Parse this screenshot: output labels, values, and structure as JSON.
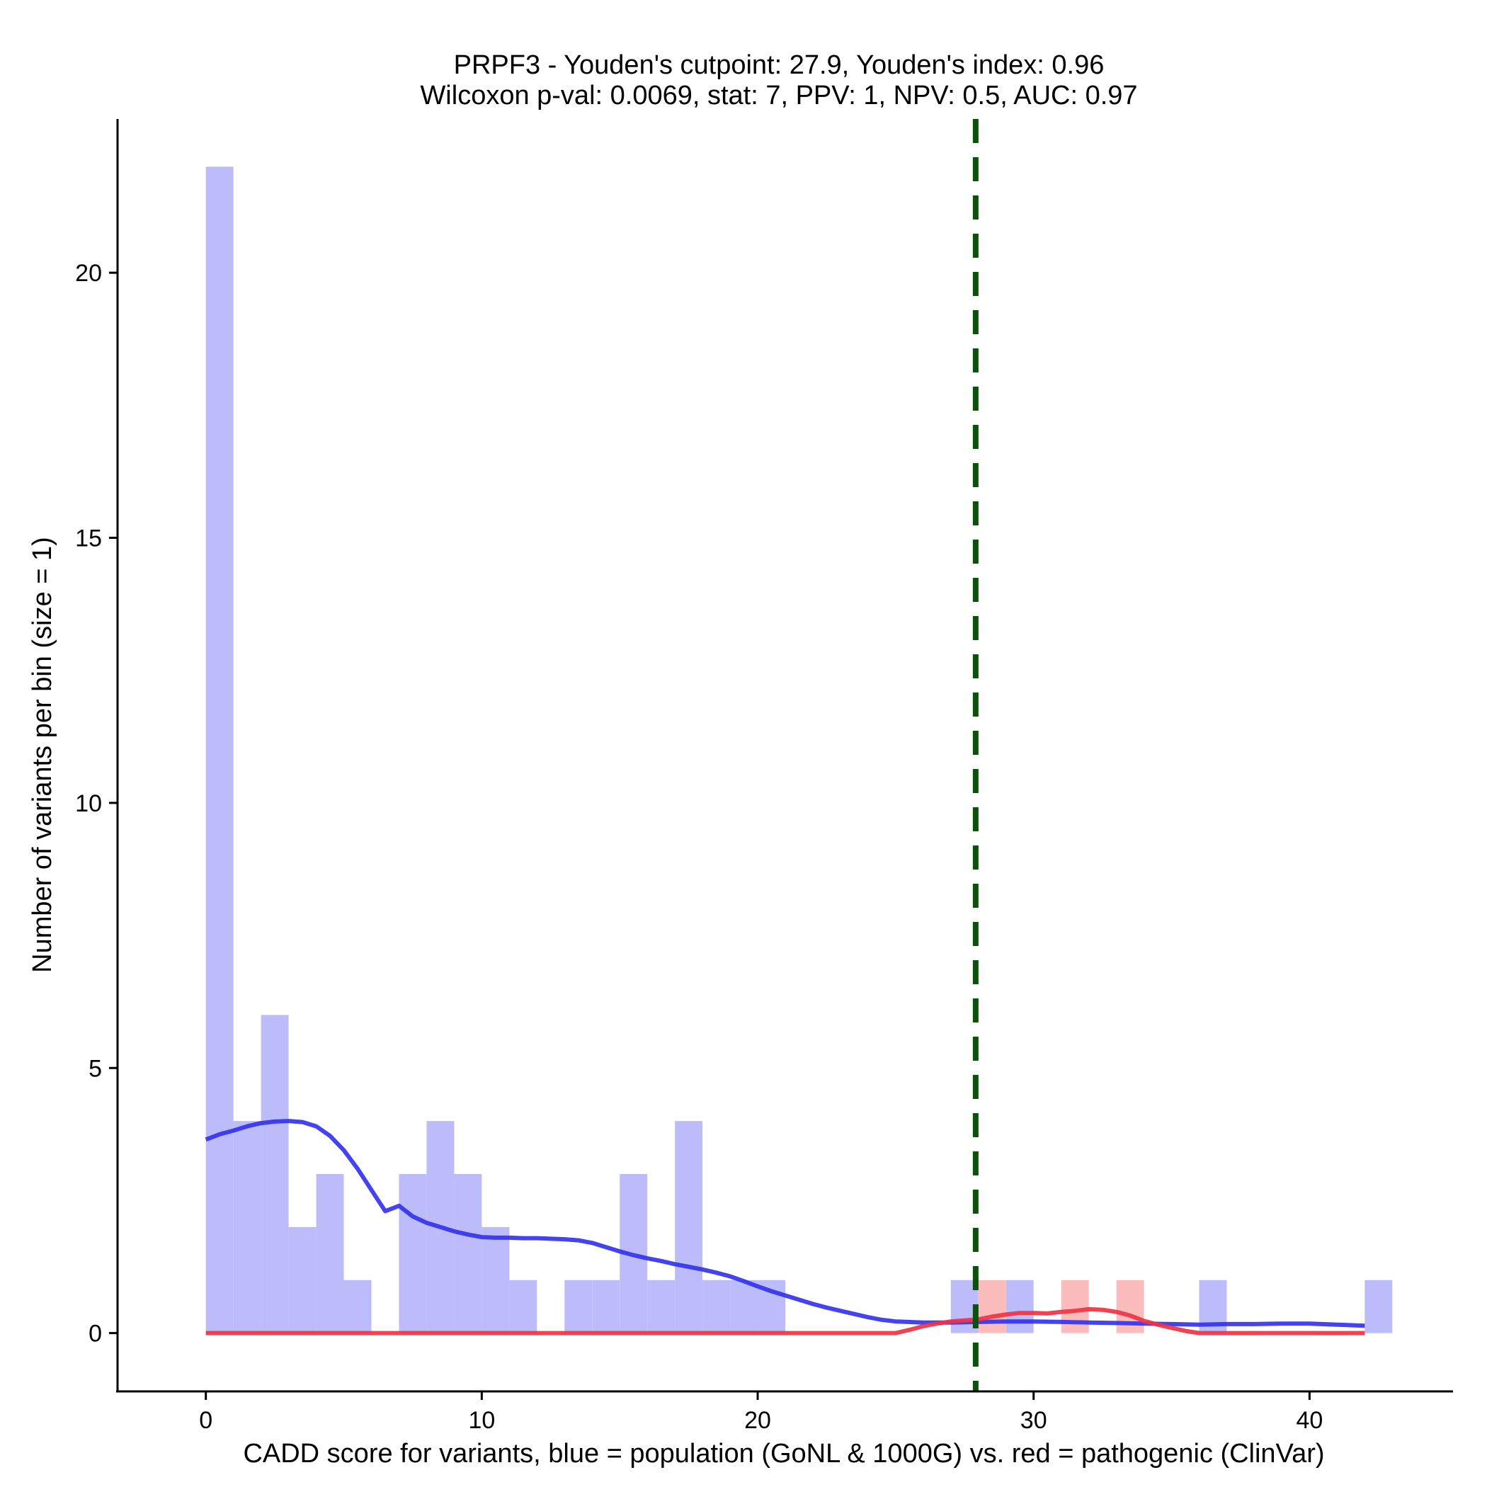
{
  "chart_data": {
    "type": "bar",
    "title": "PRPF3 - Youden's cutpoint: 27.9, Youden's index: 0.96",
    "subtitle": "Wilcoxon p-val: 0.0069, stat: 7, PPV: 1, NPV: 0.5, AUC: 0.97",
    "xlabel": "CADD score for variants, blue = population (GoNL & 1000G) vs. red = pathogenic (ClinVar)",
    "ylabel": "Number of variants per bin (size = 1)",
    "xlim": [
      -3.2,
      45.2
    ],
    "ylim": [
      -1.1,
      22.9
    ],
    "x_ticks": [
      0,
      10,
      20,
      30,
      40
    ],
    "y_ticks": [
      0,
      5,
      10,
      15,
      20
    ],
    "grid": false,
    "legend": "none",
    "bin_width": 1,
    "cutpoint": 27.9,
    "colors": {
      "population": "#bcbcfa",
      "pathogenic": "#fbbcbc",
      "population_line": "#3333ee",
      "pathogenic_line": "#ee3344",
      "cutpoint": "#0a520a"
    },
    "series": [
      {
        "kind": "population",
        "bins": [
          {
            "x": 0,
            "count": 22
          },
          {
            "x": 1,
            "count": 4
          },
          {
            "x": 2,
            "count": 6
          },
          {
            "x": 3,
            "count": 2
          },
          {
            "x": 4,
            "count": 3
          },
          {
            "x": 5,
            "count": 1
          },
          {
            "x": 7,
            "count": 3
          },
          {
            "x": 8,
            "count": 4
          },
          {
            "x": 9,
            "count": 3
          },
          {
            "x": 10,
            "count": 2
          },
          {
            "x": 11,
            "count": 1
          },
          {
            "x": 13,
            "count": 1
          },
          {
            "x": 14,
            "count": 1
          },
          {
            "x": 15,
            "count": 3
          },
          {
            "x": 16,
            "count": 1
          },
          {
            "x": 17,
            "count": 4
          },
          {
            "x": 18,
            "count": 1
          },
          {
            "x": 19,
            "count": 1
          },
          {
            "x": 20,
            "count": 1
          },
          {
            "x": 27,
            "count": 1
          },
          {
            "x": 29,
            "count": 1
          },
          {
            "x": 36,
            "count": 1
          },
          {
            "x": 42,
            "count": 1
          }
        ],
        "density": [
          [
            0,
            3.65
          ],
          [
            0.5,
            3.75
          ],
          [
            1,
            3.82
          ],
          [
            1.5,
            3.9
          ],
          [
            2,
            3.96
          ],
          [
            2.5,
            3.99
          ],
          [
            3,
            4.0
          ],
          [
            3.5,
            3.98
          ],
          [
            4,
            3.9
          ],
          [
            4.5,
            3.72
          ],
          [
            5,
            3.45
          ],
          [
            5.5,
            3.1
          ],
          [
            6,
            2.7
          ],
          [
            6.5,
            2.3
          ],
          [
            7,
            2.4
          ],
          [
            7.5,
            2.2
          ],
          [
            8,
            2.08
          ],
          [
            8.5,
            2.0
          ],
          [
            9,
            1.92
          ],
          [
            9.5,
            1.86
          ],
          [
            10,
            1.81
          ],
          [
            10.5,
            1.8
          ],
          [
            11,
            1.8
          ],
          [
            11.5,
            1.79
          ],
          [
            12,
            1.79
          ],
          [
            12.5,
            1.78
          ],
          [
            13,
            1.77
          ],
          [
            13.5,
            1.75
          ],
          [
            14,
            1.7
          ],
          [
            14.5,
            1.62
          ],
          [
            15,
            1.54
          ],
          [
            15.5,
            1.47
          ],
          [
            16,
            1.41
          ],
          [
            16.5,
            1.36
          ],
          [
            17,
            1.3
          ],
          [
            17.5,
            1.25
          ],
          [
            18,
            1.2
          ],
          [
            18.5,
            1.14
          ],
          [
            19,
            1.07
          ],
          [
            19.5,
            0.98
          ],
          [
            20,
            0.88
          ],
          [
            20.5,
            0.79
          ],
          [
            21,
            0.71
          ],
          [
            21.5,
            0.63
          ],
          [
            22,
            0.55
          ],
          [
            22.5,
            0.48
          ],
          [
            23,
            0.42
          ],
          [
            23.5,
            0.36
          ],
          [
            24,
            0.3
          ],
          [
            24.5,
            0.25
          ],
          [
            25,
            0.22
          ],
          [
            26,
            0.2
          ],
          [
            27,
            0.2
          ],
          [
            28,
            0.21
          ],
          [
            29,
            0.22
          ],
          [
            30,
            0.22
          ],
          [
            31,
            0.21
          ],
          [
            32,
            0.2
          ],
          [
            33,
            0.19
          ],
          [
            34,
            0.18
          ],
          [
            35,
            0.17
          ],
          [
            36,
            0.16
          ],
          [
            37,
            0.17
          ],
          [
            38,
            0.17
          ],
          [
            39,
            0.18
          ],
          [
            40,
            0.18
          ],
          [
            41,
            0.16
          ],
          [
            42,
            0.14
          ]
        ]
      },
      {
        "kind": "pathogenic",
        "bins": [
          {
            "x": 28,
            "count": 1
          },
          {
            "x": 31,
            "count": 1
          },
          {
            "x": 33,
            "count": 1
          }
        ],
        "density": [
          [
            0,
            0
          ],
          [
            25,
            0
          ],
          [
            25.5,
            0.06
          ],
          [
            26,
            0.13
          ],
          [
            26.5,
            0.18
          ],
          [
            27,
            0.22
          ],
          [
            27.5,
            0.24
          ],
          [
            28,
            0.26
          ],
          [
            28.5,
            0.31
          ],
          [
            29,
            0.35
          ],
          [
            29.5,
            0.38
          ],
          [
            30,
            0.38
          ],
          [
            30.5,
            0.37
          ],
          [
            31,
            0.4
          ],
          [
            31.5,
            0.42
          ],
          [
            32,
            0.45
          ],
          [
            32.5,
            0.44
          ],
          [
            33,
            0.4
          ],
          [
            33.5,
            0.33
          ],
          [
            34,
            0.23
          ],
          [
            34.5,
            0.16
          ],
          [
            35,
            0.1
          ],
          [
            35.5,
            0.04
          ],
          [
            36,
            0
          ],
          [
            42,
            0
          ]
        ]
      }
    ]
  }
}
